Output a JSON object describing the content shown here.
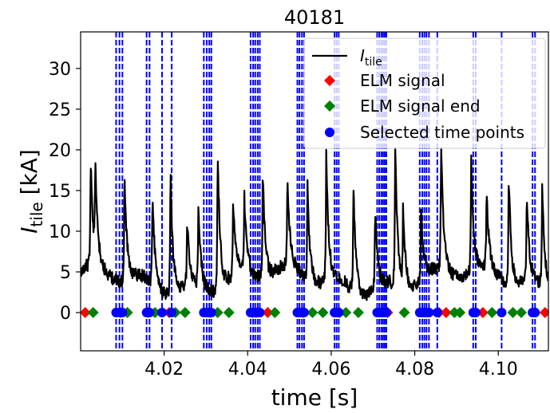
{
  "chart_data": {
    "type": "line",
    "title": "40181",
    "xlabel": "time [s]",
    "ylabel": {
      "base": "I",
      "sub": "tile",
      "unit": " [kA]"
    },
    "xlim": [
      4.0,
      4.112
    ],
    "ylim": [
      -4.7,
      34.5
    ],
    "xticks": [
      4.02,
      4.04,
      4.06,
      4.08,
      4.1
    ],
    "xtick_labels": [
      "4.02",
      "4.04",
      "4.06",
      "4.08",
      "4.10"
    ],
    "yticks": [
      0,
      5,
      10,
      15,
      20,
      25,
      30
    ],
    "ytick_labels": [
      "0",
      "5",
      "10",
      "15",
      "20",
      "25",
      "30"
    ],
    "grid": false,
    "legend_position": "top-right",
    "legend": [
      {
        "type": "line",
        "color": "#000000",
        "label_base": "I",
        "label_sub": "tile"
      },
      {
        "type": "diamond",
        "color": "#ff0000",
        "label": "ELM signal"
      },
      {
        "type": "diamond",
        "color": "#008000",
        "label": "ELM signal end"
      },
      {
        "type": "circle",
        "color": "#0000ff",
        "label": "Selected time points"
      }
    ],
    "series": [
      {
        "name": "I_tile",
        "color": "#000000",
        "baseline": 4.0,
        "noise": 0.8,
        "peaks": [
          {
            "t": 4.0024,
            "v": 17.0
          },
          {
            "t": 4.0035,
            "v": 15.0
          },
          {
            "t": 4.0105,
            "v": 17.5
          },
          {
            "t": 4.0172,
            "v": 15.5
          },
          {
            "t": 4.0215,
            "v": 19.5
          },
          {
            "t": 4.0255,
            "v": 12.0
          },
          {
            "t": 4.0282,
            "v": 14.0
          },
          {
            "t": 4.0328,
            "v": 22.0
          },
          {
            "t": 4.0365,
            "v": 13.5
          },
          {
            "t": 4.0392,
            "v": 13.0
          },
          {
            "t": 4.0436,
            "v": 17.5
          },
          {
            "t": 4.0495,
            "v": 15.0
          },
          {
            "t": 4.0543,
            "v": 16.0
          },
          {
            "t": 4.0588,
            "v": 19.5
          },
          {
            "t": 4.0653,
            "v": 17.5
          },
          {
            "t": 4.0705,
            "v": 14.5
          },
          {
            "t": 4.0753,
            "v": 21.5
          },
          {
            "t": 4.0772,
            "v": 14.0
          },
          {
            "t": 4.0815,
            "v": 13.5
          },
          {
            "t": 4.0863,
            "v": 19.5
          },
          {
            "t": 4.0935,
            "v": 18.0
          },
          {
            "t": 4.0972,
            "v": 13.5
          },
          {
            "t": 4.1025,
            "v": 18.0
          },
          {
            "t": 4.1068,
            "v": 15.0
          },
          {
            "t": 4.1105,
            "v": 17.0
          }
        ]
      }
    ],
    "elm_signal": {
      "color": "#ff0000",
      "y": 0,
      "x": [
        4.0011,
        4.0095,
        4.0162,
        4.0212,
        4.031,
        4.042,
        4.0448,
        4.0533,
        4.062,
        4.0735,
        4.0858,
        4.0875,
        4.0963,
        4.1112
      ]
    },
    "elm_signal_end": {
      "color": "#008000",
      "y": 0,
      "x": [
        4.003,
        4.0112,
        4.0178,
        4.0227,
        4.025,
        4.0328,
        4.0355,
        4.0412,
        4.0465,
        4.0555,
        4.058,
        4.0635,
        4.0665,
        4.0775,
        4.0895,
        4.0908,
        4.0985,
        4.1035,
        4.1055
      ]
    },
    "selected_points": {
      "color": "#0000ff",
      "y": 0,
      "x": [
        4.0085,
        4.0093,
        4.01,
        4.0158,
        4.0165,
        4.0195,
        4.0218,
        4.0295,
        4.0302,
        4.0308,
        4.0313,
        4.0407,
        4.0413,
        4.0418,
        4.0424,
        4.0429,
        4.0519,
        4.0524,
        4.053,
        4.0535,
        4.0608,
        4.0613,
        4.0618,
        4.071,
        4.0715,
        4.072,
        4.0724,
        4.0728,
        4.0732,
        4.0812,
        4.0818,
        4.0823,
        4.0828,
        4.0834,
        4.0854,
        4.094,
        4.0946,
        4.1008,
        4.1082,
        4.1088
      ]
    },
    "vlines": {
      "color": "#0000ff",
      "style": "dashed",
      "x": [
        4.0085,
        4.0093,
        4.01,
        4.0158,
        4.0165,
        4.0195,
        4.0218,
        4.0295,
        4.0302,
        4.0308,
        4.0313,
        4.0407,
        4.0413,
        4.0418,
        4.0424,
        4.0429,
        4.0519,
        4.0524,
        4.053,
        4.0535,
        4.0608,
        4.0613,
        4.0618,
        4.071,
        4.0715,
        4.072,
        4.0724,
        4.0728,
        4.0732,
        4.0812,
        4.0818,
        4.0823,
        4.0828,
        4.0834,
        4.0854,
        4.094,
        4.0946,
        4.1008,
        4.1082,
        4.1088
      ]
    }
  }
}
